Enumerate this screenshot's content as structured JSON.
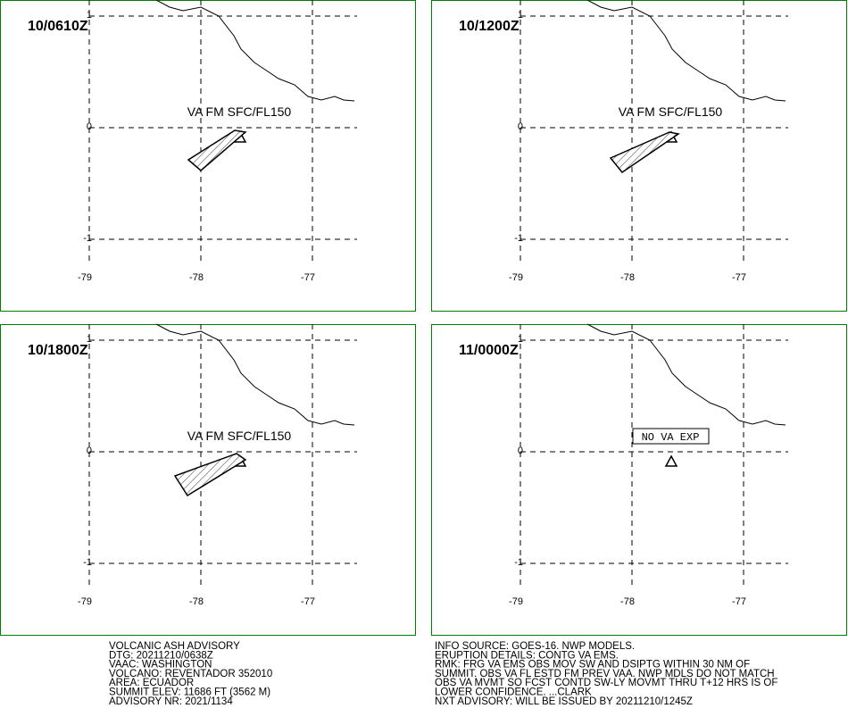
{
  "panels": [
    {
      "time": "10/0610Z",
      "annotation": "VA FM SFC/FL150"
    },
    {
      "time": "10/1200Z",
      "annotation": "VA FM SFC/FL150"
    },
    {
      "time": "10/1800Z",
      "annotation": "VA FM SFC/FL150"
    },
    {
      "time": "11/0000Z",
      "annotation": "NO VA EXP"
    }
  ],
  "map": {
    "xticks": [
      -79,
      -78,
      -77
    ],
    "yticks": [
      1,
      0,
      -1
    ]
  },
  "footer": {
    "left": [
      "VOLCANIC ASH ADVISORY",
      "DTG: 20211210/0638Z",
      "VAAC: WASHINGTON",
      "VOLCANO: REVENTADOR 352010",
      "AREA: ECUADOR",
      "SUMMIT ELEV: 11686 FT (3562 M)",
      "ADVISORY NR: 2021/1134"
    ],
    "right": [
      "INFO SOURCE: GOES-16. NWP MODELS.",
      "ERUPTION DETAILS: CONTG VA EMS.",
      "RMK: FRG VA EMS OBS MOV SW AND DSIPTG WITHIN 30 NM OF",
      "SUMMIT. OBS VA FL ESTD FM PREV VAA. NWP MDLS DO NOT MATCH",
      "OBS VA MVMT SO FCST CONTD SW-LY MOVMT THRU T+12 HRS IS OF",
      "LOWER CONFIDENCE. ...CLARK",
      "NXT ADVISORY: WILL BE ISSUED BY 20211210/1245Z"
    ]
  }
}
